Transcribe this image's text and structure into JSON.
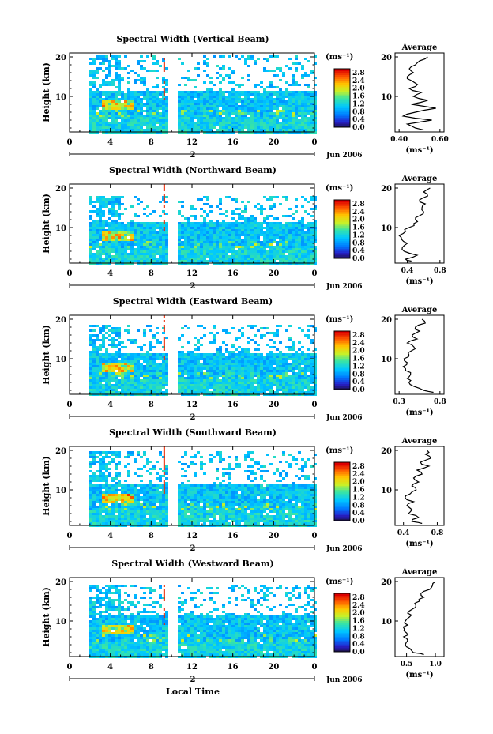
{
  "figure": {
    "xlabel": "Local Time",
    "date_label": "Jun 2006",
    "day_marker": "2",
    "colorbar_unit": "(ms⁻¹)",
    "colorbar_ticks": [
      "0.0",
      "0.4",
      "0.8",
      "1.2",
      "1.6",
      "2.0",
      "2.4",
      "2.8"
    ],
    "avg_title": "Average",
    "avg_unit": "(ms⁻¹)"
  },
  "chart_data": [
    {
      "type": "heatmap",
      "title": "Spectral Width (Vertical Beam)",
      "ylabel": "Height (km)",
      "xticks": [
        "0",
        "4",
        "8",
        "12",
        "16",
        "20",
        "0"
      ],
      "yticks": [
        "10",
        "20"
      ],
      "xlim": [
        0,
        24
      ],
      "ylim": [
        1,
        21
      ],
      "clim": [
        0.0,
        3.0
      ],
      "data_gap_hours": [
        9.5,
        10.5
      ],
      "coverage_top_km": 20.5,
      "average": {
        "xticks": [
          "0.40",
          "0.60"
        ],
        "xlim": [
          0.38,
          0.62
        ],
        "profile": [
          [
            1.5,
            0.52
          ],
          [
            2,
            0.48
          ],
          [
            3,
            0.44
          ],
          [
            4,
            0.56
          ],
          [
            5,
            0.42
          ],
          [
            6,
            0.48
          ],
          [
            7,
            0.58
          ],
          [
            8,
            0.46
          ],
          [
            9,
            0.54
          ],
          [
            10,
            0.47
          ],
          [
            11,
            0.51
          ],
          [
            12,
            0.45
          ],
          [
            13,
            0.49
          ],
          [
            14,
            0.46
          ],
          [
            15,
            0.44
          ],
          [
            16,
            0.47
          ],
          [
            17,
            0.45
          ],
          [
            18,
            0.48
          ],
          [
            19,
            0.5
          ],
          [
            20,
            0.54
          ]
        ]
      }
    },
    {
      "type": "heatmap",
      "title": "Spectral Width (Northward Beam)",
      "ylabel": "Height (km)",
      "xticks": [
        "0",
        "4",
        "8",
        "12",
        "16",
        "20",
        "0"
      ],
      "yticks": [
        "10",
        "20"
      ],
      "xlim": [
        0,
        24
      ],
      "ylim": [
        1,
        21
      ],
      "clim": [
        0.0,
        3.0
      ],
      "data_gap_hours": [
        9.5,
        10.5
      ],
      "coverage_top_km": 18.5,
      "average": {
        "xticks": [
          "0.4",
          "0.8"
        ],
        "xlim": [
          0.25,
          0.85
        ],
        "profile": [
          [
            1.5,
            0.45
          ],
          [
            2,
            0.38
          ],
          [
            3,
            0.52
          ],
          [
            4,
            0.36
          ],
          [
            5,
            0.34
          ],
          [
            6,
            0.4
          ],
          [
            7,
            0.33
          ],
          [
            8,
            0.3
          ],
          [
            9,
            0.38
          ],
          [
            10,
            0.42
          ],
          [
            11,
            0.48
          ],
          [
            12,
            0.5
          ],
          [
            13,
            0.55
          ],
          [
            14,
            0.6
          ],
          [
            15,
            0.58
          ],
          [
            16,
            0.62
          ],
          [
            17,
            0.55
          ],
          [
            18,
            0.65
          ],
          [
            19,
            0.6
          ],
          [
            20,
            0.68
          ]
        ]
      }
    },
    {
      "type": "heatmap",
      "title": "Spectral Width (Eastward Beam)",
      "ylabel": "Height (km)",
      "xticks": [
        "0",
        "4",
        "8",
        "12",
        "16",
        "20",
        "0"
      ],
      "yticks": [
        "10",
        "20"
      ],
      "xlim": [
        0,
        24
      ],
      "ylim": [
        1,
        21
      ],
      "clim": [
        0.0,
        3.0
      ],
      "data_gap_hours": [
        9.5,
        10.5
      ],
      "coverage_top_km": 19.0,
      "average": {
        "xticks": [
          "0.3",
          "0.8"
        ],
        "xlim": [
          0.25,
          0.85
        ],
        "profile": [
          [
            1.5,
            0.72
          ],
          [
            2,
            0.6
          ],
          [
            3,
            0.48
          ],
          [
            4,
            0.42
          ],
          [
            5,
            0.4
          ],
          [
            6,
            0.44
          ],
          [
            7,
            0.38
          ],
          [
            8,
            0.35
          ],
          [
            9,
            0.4
          ],
          [
            10,
            0.36
          ],
          [
            11,
            0.42
          ],
          [
            12,
            0.45
          ],
          [
            13,
            0.48
          ],
          [
            14,
            0.4
          ],
          [
            15,
            0.52
          ],
          [
            16,
            0.46
          ],
          [
            17,
            0.55
          ],
          [
            18,
            0.5
          ],
          [
            19,
            0.62
          ],
          [
            20,
            0.58
          ]
        ]
      }
    },
    {
      "type": "heatmap",
      "title": "Spectral Width (Southward Beam)",
      "ylabel": "Height (km)",
      "xticks": [
        "0",
        "4",
        "8",
        "12",
        "16",
        "20",
        "0"
      ],
      "yticks": [
        "10",
        "20"
      ],
      "xlim": [
        0,
        24
      ],
      "ylim": [
        1,
        21
      ],
      "clim": [
        0.0,
        3.0
      ],
      "data_gap_hours": [
        9.5,
        10.5
      ],
      "coverage_top_km": 20.0,
      "average": {
        "xticks": [
          "0.4",
          "0.8"
        ],
        "xlim": [
          0.3,
          0.88
        ],
        "profile": [
          [
            1.5,
            0.62
          ],
          [
            2,
            0.5
          ],
          [
            3,
            0.58
          ],
          [
            4,
            0.46
          ],
          [
            5,
            0.5
          ],
          [
            6,
            0.44
          ],
          [
            7,
            0.52
          ],
          [
            8,
            0.42
          ],
          [
            9,
            0.48
          ],
          [
            10,
            0.55
          ],
          [
            11,
            0.5
          ],
          [
            12,
            0.58
          ],
          [
            13,
            0.52
          ],
          [
            14,
            0.62
          ],
          [
            15,
            0.56
          ],
          [
            16,
            0.7
          ],
          [
            17,
            0.6
          ],
          [
            18,
            0.72
          ],
          [
            19,
            0.66
          ],
          [
            20,
            0.68
          ]
        ]
      }
    },
    {
      "type": "heatmap",
      "title": "Spectral Width (Westward Beam)",
      "ylabel": "Height (km)",
      "xticks": [
        "0",
        "4",
        "8",
        "12",
        "16",
        "20",
        "0"
      ],
      "yticks": [
        "10",
        "20"
      ],
      "xlim": [
        0,
        24
      ],
      "ylim": [
        1,
        21
      ],
      "clim": [
        0.0,
        3.0
      ],
      "data_gap_hours": [
        9.5,
        10.5
      ],
      "coverage_top_km": 19.5,
      "average": {
        "xticks": [
          "0.5",
          "1.0"
        ],
        "xlim": [
          0.3,
          1.15
        ],
        "profile": [
          [
            1.5,
            0.8
          ],
          [
            2,
            0.62
          ],
          [
            3,
            0.56
          ],
          [
            4,
            0.48
          ],
          [
            5,
            0.52
          ],
          [
            6,
            0.45
          ],
          [
            7,
            0.5
          ],
          [
            8,
            0.46
          ],
          [
            9,
            0.52
          ],
          [
            10,
            0.48
          ],
          [
            11,
            0.55
          ],
          [
            12,
            0.52
          ],
          [
            13,
            0.6
          ],
          [
            14,
            0.66
          ],
          [
            15,
            0.72
          ],
          [
            16,
            0.8
          ],
          [
            17,
            0.75
          ],
          [
            18,
            0.9
          ],
          [
            19,
            0.95
          ],
          [
            20,
            1.0
          ]
        ]
      }
    }
  ]
}
